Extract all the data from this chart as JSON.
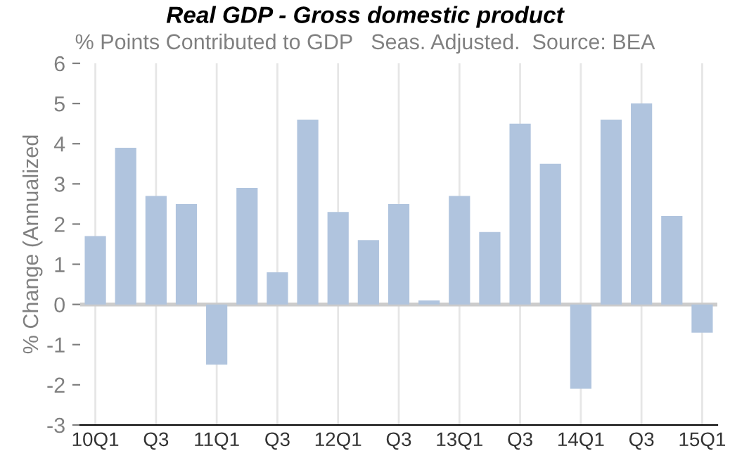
{
  "chart_data": {
    "type": "bar",
    "title": "Real GDP - Gross domestic product",
    "subtitle": "% Points Contributed to GDP   Seas. Adjusted.  Source: BEA",
    "ylabel": "% Change (Annualized",
    "categories": [
      "10Q1",
      null,
      "Q3",
      null,
      "11Q1",
      null,
      "Q3",
      null,
      "12Q1",
      null,
      "Q3",
      null,
      "13Q1",
      null,
      "Q3",
      null,
      "14Q1",
      null,
      "Q3",
      null,
      "15Q1"
    ],
    "values": [
      1.7,
      3.9,
      2.7,
      2.5,
      -1.5,
      2.9,
      0.8,
      4.6,
      2.3,
      1.6,
      2.5,
      0.1,
      2.7,
      1.8,
      4.5,
      3.5,
      -2.1,
      4.6,
      5.0,
      2.2,
      -0.7
    ],
    "color": "#b0c4de",
    "ylim": [
      -3,
      6
    ],
    "yticks": [
      -3,
      -2,
      -1,
      0,
      1,
      2,
      3,
      4,
      5,
      6
    ],
    "grid": "x",
    "ref_lines": [
      {
        "axis": "y",
        "value": 0,
        "color": "#cccccc"
      }
    ]
  }
}
